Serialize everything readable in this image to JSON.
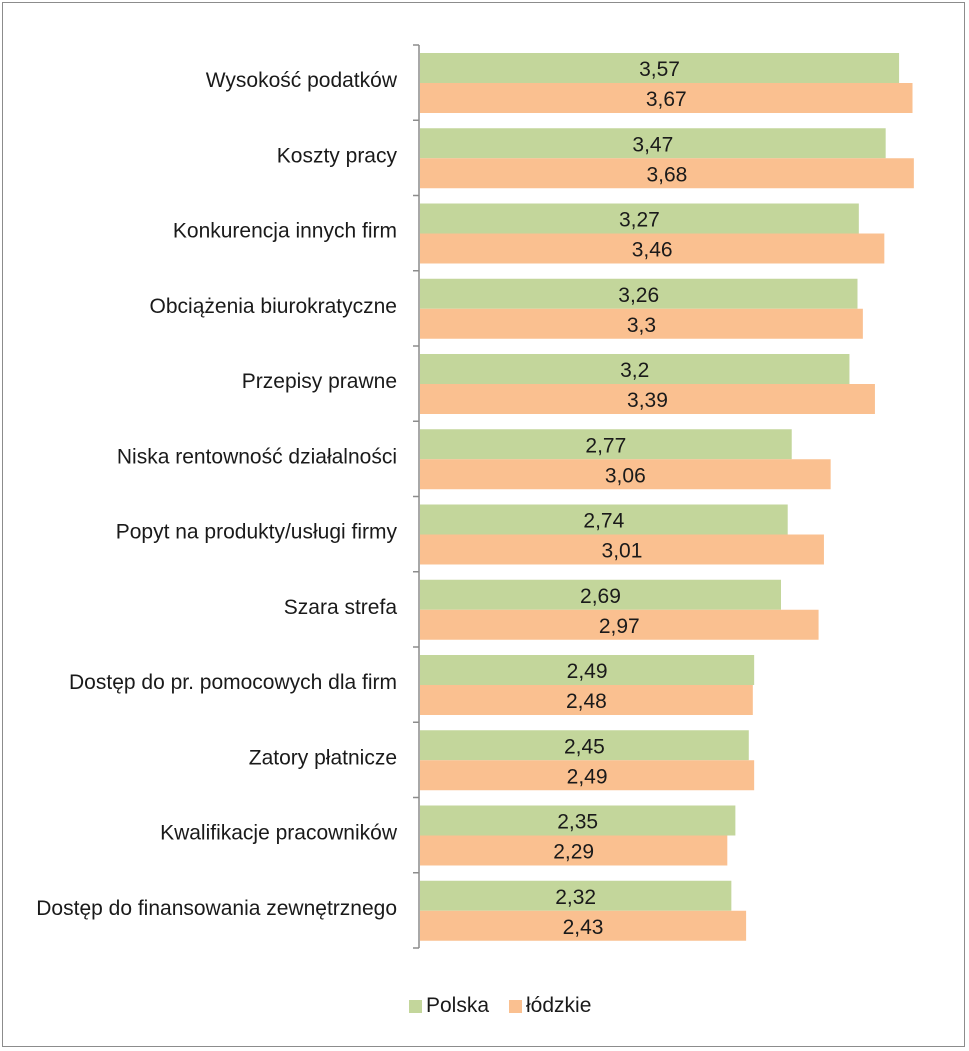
{
  "chart_data": {
    "type": "bar",
    "orientation": "horizontal",
    "categories": [
      "Wysokość podatków",
      "Koszty pracy",
      "Konkurencja innych firm",
      "Obciążenia biurokratyczne",
      "Przepisy prawne",
      "Niska rentowność działalności",
      "Popyt na produkty/usługi firmy",
      "Szara strefa",
      "Dostęp do pr. pomocowych dla firm",
      "Zatory płatnicze",
      "Kwalifikacje pracowników",
      "Dostęp do finansowania zewnętrznego"
    ],
    "series": [
      {
        "name": "Polska",
        "color": "#c3d69b",
        "values": [
          3.57,
          3.47,
          3.27,
          3.26,
          3.2,
          2.77,
          2.74,
          2.69,
          2.49,
          2.45,
          2.35,
          2.32
        ],
        "labels": [
          "3,57",
          "3,47",
          "3,27",
          "3,26",
          "3,2",
          "2,77",
          "2,74",
          "2,69",
          "2,49",
          "2,45",
          "2,35",
          "2,32"
        ]
      },
      {
        "name": "łódzkie",
        "color": "#fac090",
        "values": [
          3.67,
          3.68,
          3.46,
          3.3,
          3.39,
          3.06,
          3.01,
          2.97,
          2.48,
          2.49,
          2.29,
          2.43
        ],
        "labels": [
          "3,67",
          "3,68",
          "3,46",
          "3,3",
          "3,39",
          "3,06",
          "3,01",
          "2,97",
          "2,48",
          "2,49",
          "2,29",
          "2,43"
        ]
      }
    ],
    "xlim": [
      0,
      3.7
    ],
    "grid": false,
    "legend_position": "bottom"
  }
}
